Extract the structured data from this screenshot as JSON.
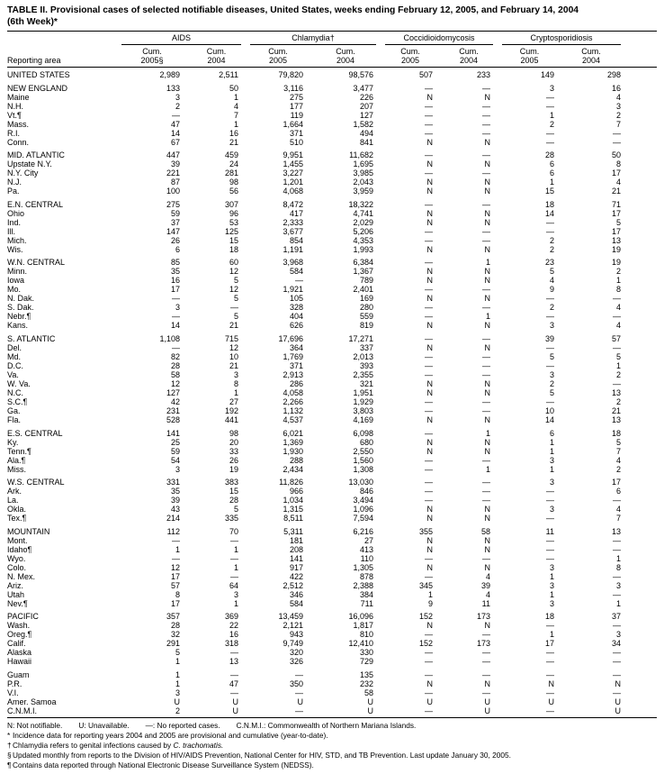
{
  "title": "TABLE II. Provisional cases of selected notifiable diseases, United States, weeks ending February 12, 2005, and February 14, 2004",
  "subtitle": "(6th Week)*",
  "header": {
    "reporting_area_label": "Reporting area",
    "groups": [
      {
        "label": "AIDS",
        "col1_line1": "Cum.",
        "col1_line2": "2005§",
        "col2_line1": "Cum.",
        "col2_line2": "2004"
      },
      {
        "label": "Chlamydia†",
        "col1_line1": "Cum.",
        "col1_line2": "2005",
        "col2_line1": "Cum.",
        "col2_line2": "2004"
      },
      {
        "label": "Coccidioidomycosis",
        "col1_line1": "Cum.",
        "col1_line2": "2005",
        "col2_line1": "Cum.",
        "col2_line2": "2004"
      },
      {
        "label": "Cryptosporidiosis",
        "col1_line1": "Cum.",
        "col1_line2": "2005",
        "col2_line1": "Cum.",
        "col2_line2": "2004"
      }
    ]
  },
  "sections": [
    {
      "rows": [
        {
          "area": "UNITED STATES",
          "values": [
            "2,989",
            "2,511",
            "79,820",
            "98,576",
            "507",
            "233",
            "149",
            "298"
          ]
        }
      ]
    },
    {
      "rows": [
        {
          "area": "NEW ENGLAND",
          "values": [
            "133",
            "50",
            "3,116",
            "3,477",
            "—",
            "—",
            "3",
            "16"
          ]
        },
        {
          "area": "Maine",
          "values": [
            "3",
            "1",
            "275",
            "226",
            "N",
            "N",
            "—",
            "4"
          ]
        },
        {
          "area": "N.H.",
          "values": [
            "2",
            "4",
            "177",
            "207",
            "—",
            "—",
            "—",
            "3"
          ]
        },
        {
          "area": "Vt.¶",
          "values": [
            "—",
            "7",
            "119",
            "127",
            "—",
            "—",
            "1",
            "2"
          ]
        },
        {
          "area": "Mass.",
          "values": [
            "47",
            "1",
            "1,664",
            "1,582",
            "—",
            "—",
            "2",
            "7"
          ]
        },
        {
          "area": "R.I.",
          "values": [
            "14",
            "16",
            "371",
            "494",
            "—",
            "—",
            "—",
            "—"
          ]
        },
        {
          "area": "Conn.",
          "values": [
            "67",
            "21",
            "510",
            "841",
            "N",
            "N",
            "—",
            "—"
          ]
        }
      ]
    },
    {
      "rows": [
        {
          "area": "MID. ATLANTIC",
          "values": [
            "447",
            "459",
            "9,951",
            "11,682",
            "—",
            "—",
            "28",
            "50"
          ]
        },
        {
          "area": "Upstate N.Y.",
          "values": [
            "39",
            "24",
            "1,455",
            "1,695",
            "N",
            "N",
            "6",
            "8"
          ]
        },
        {
          "area": "N.Y. City",
          "values": [
            "221",
            "281",
            "3,227",
            "3,985",
            "—",
            "—",
            "6",
            "17"
          ]
        },
        {
          "area": "N.J.",
          "values": [
            "87",
            "98",
            "1,201",
            "2,043",
            "N",
            "N",
            "1",
            "4"
          ]
        },
        {
          "area": "Pa.",
          "values": [
            "100",
            "56",
            "4,068",
            "3,959",
            "N",
            "N",
            "15",
            "21"
          ]
        }
      ]
    },
    {
      "rows": [
        {
          "area": "E.N. CENTRAL",
          "values": [
            "275",
            "307",
            "8,472",
            "18,322",
            "—",
            "—",
            "18",
            "71"
          ]
        },
        {
          "area": "Ohio",
          "values": [
            "59",
            "96",
            "417",
            "4,741",
            "N",
            "N",
            "14",
            "17"
          ]
        },
        {
          "area": "Ind.",
          "values": [
            "37",
            "53",
            "2,333",
            "2,029",
            "N",
            "N",
            "—",
            "5"
          ]
        },
        {
          "area": "Ill.",
          "values": [
            "147",
            "125",
            "3,677",
            "5,206",
            "—",
            "—",
            "—",
            "17"
          ]
        },
        {
          "area": "Mich.",
          "values": [
            "26",
            "15",
            "854",
            "4,353",
            "—",
            "—",
            "2",
            "13"
          ]
        },
        {
          "area": "Wis.",
          "values": [
            "6",
            "18",
            "1,191",
            "1,993",
            "N",
            "N",
            "2",
            "19"
          ]
        }
      ]
    },
    {
      "rows": [
        {
          "area": "W.N. CENTRAL",
          "values": [
            "85",
            "60",
            "3,968",
            "6,384",
            "—",
            "1",
            "23",
            "19"
          ]
        },
        {
          "area": "Minn.",
          "values": [
            "35",
            "12",
            "584",
            "1,367",
            "N",
            "N",
            "5",
            "2"
          ]
        },
        {
          "area": "Iowa",
          "values": [
            "16",
            "5",
            "—",
            "789",
            "N",
            "N",
            "4",
            "1"
          ]
        },
        {
          "area": "Mo.",
          "values": [
            "17",
            "12",
            "1,921",
            "2,401",
            "—",
            "—",
            "9",
            "8"
          ]
        },
        {
          "area": "N. Dak.",
          "values": [
            "—",
            "5",
            "105",
            "169",
            "N",
            "N",
            "—",
            "—"
          ]
        },
        {
          "area": "S. Dak.",
          "values": [
            "3",
            "—",
            "328",
            "280",
            "—",
            "—",
            "2",
            "4"
          ]
        },
        {
          "area": "Nebr.¶",
          "values": [
            "—",
            "5",
            "404",
            "559",
            "—",
            "1",
            "—",
            "—"
          ]
        },
        {
          "area": "Kans.",
          "values": [
            "14",
            "21",
            "626",
            "819",
            "N",
            "N",
            "3",
            "4"
          ]
        }
      ]
    },
    {
      "rows": [
        {
          "area": "S. ATLANTIC",
          "values": [
            "1,108",
            "715",
            "17,696",
            "17,271",
            "—",
            "—",
            "39",
            "57"
          ]
        },
        {
          "area": "Del.",
          "values": [
            "—",
            "12",
            "364",
            "337",
            "N",
            "N",
            "—",
            "—"
          ]
        },
        {
          "area": "Md.",
          "values": [
            "82",
            "10",
            "1,769",
            "2,013",
            "—",
            "—",
            "5",
            "5"
          ]
        },
        {
          "area": "D.C.",
          "values": [
            "28",
            "21",
            "371",
            "393",
            "—",
            "—",
            "—",
            "1"
          ]
        },
        {
          "area": "Va.",
          "values": [
            "58",
            "3",
            "2,913",
            "2,355",
            "—",
            "—",
            "3",
            "2"
          ]
        },
        {
          "area": "W. Va.",
          "values": [
            "12",
            "8",
            "286",
            "321",
            "N",
            "N",
            "2",
            "—"
          ]
        },
        {
          "area": "N.C.",
          "values": [
            "127",
            "1",
            "4,058",
            "1,951",
            "N",
            "N",
            "5",
            "13"
          ]
        },
        {
          "area": "S.C.¶",
          "values": [
            "42",
            "27",
            "2,266",
            "1,929",
            "—",
            "—",
            "—",
            "2"
          ]
        },
        {
          "area": "Ga.",
          "values": [
            "231",
            "192",
            "1,132",
            "3,803",
            "—",
            "—",
            "10",
            "21"
          ]
        },
        {
          "area": "Fla.",
          "values": [
            "528",
            "441",
            "4,537",
            "4,169",
            "N",
            "N",
            "14",
            "13"
          ]
        }
      ]
    },
    {
      "rows": [
        {
          "area": "E.S. CENTRAL",
          "values": [
            "141",
            "98",
            "6,021",
            "6,098",
            "—",
            "1",
            "6",
            "18"
          ]
        },
        {
          "area": "Ky.",
          "values": [
            "25",
            "20",
            "1,369",
            "680",
            "N",
            "N",
            "1",
            "5"
          ]
        },
        {
          "area": "Tenn.¶",
          "values": [
            "59",
            "33",
            "1,930",
            "2,550",
            "N",
            "N",
            "1",
            "7"
          ]
        },
        {
          "area": "Ala.¶",
          "values": [
            "54",
            "26",
            "288",
            "1,560",
            "—",
            "—",
            "3",
            "4"
          ]
        },
        {
          "area": "Miss.",
          "values": [
            "3",
            "19",
            "2,434",
            "1,308",
            "—",
            "1",
            "1",
            "2"
          ]
        }
      ]
    },
    {
      "rows": [
        {
          "area": "W.S. CENTRAL",
          "values": [
            "331",
            "383",
            "11,826",
            "13,030",
            "—",
            "—",
            "3",
            "17"
          ]
        },
        {
          "area": "Ark.",
          "values": [
            "35",
            "15",
            "966",
            "846",
            "—",
            "—",
            "—",
            "6"
          ]
        },
        {
          "area": "La.",
          "values": [
            "39",
            "28",
            "1,034",
            "3,494",
            "—",
            "—",
            "—",
            "—"
          ]
        },
        {
          "area": "Okla.",
          "values": [
            "43",
            "5",
            "1,315",
            "1,096",
            "N",
            "N",
            "3",
            "4"
          ]
        },
        {
          "area": "Tex.¶",
          "values": [
            "214",
            "335",
            "8,511",
            "7,594",
            "N",
            "N",
            "—",
            "7"
          ]
        }
      ]
    },
    {
      "rows": [
        {
          "area": "MOUNTAIN",
          "values": [
            "112",
            "70",
            "5,311",
            "6,216",
            "355",
            "58",
            "11",
            "13"
          ]
        },
        {
          "area": "Mont.",
          "values": [
            "—",
            "—",
            "181",
            "27",
            "N",
            "N",
            "—",
            "—"
          ]
        },
        {
          "area": "Idaho¶",
          "values": [
            "1",
            "1",
            "208",
            "413",
            "N",
            "N",
            "—",
            "—"
          ]
        },
        {
          "area": "Wyo.",
          "values": [
            "—",
            "—",
            "141",
            "110",
            "—",
            "—",
            "—",
            "1"
          ]
        },
        {
          "area": "Colo.",
          "values": [
            "12",
            "1",
            "917",
            "1,305",
            "N",
            "N",
            "3",
            "8"
          ]
        },
        {
          "area": "N. Mex.",
          "values": [
            "17",
            "—",
            "422",
            "878",
            "—",
            "4",
            "1",
            "—"
          ]
        },
        {
          "area": "Ariz.",
          "values": [
            "57",
            "64",
            "2,512",
            "2,388",
            "345",
            "39",
            "3",
            "3"
          ]
        },
        {
          "area": "Utah",
          "values": [
            "8",
            "3",
            "346",
            "384",
            "1",
            "4",
            "1",
            "—"
          ]
        },
        {
          "area": "Nev.¶",
          "values": [
            "17",
            "1",
            "584",
            "711",
            "9",
            "11",
            "3",
            "1"
          ]
        }
      ]
    },
    {
      "rows": [
        {
          "area": "PACIFIC",
          "values": [
            "357",
            "369",
            "13,459",
            "16,096",
            "152",
            "173",
            "18",
            "37"
          ]
        },
        {
          "area": "Wash.",
          "values": [
            "28",
            "22",
            "2,121",
            "1,817",
            "N",
            "N",
            "—",
            "—"
          ]
        },
        {
          "area": "Oreg.¶",
          "values": [
            "32",
            "16",
            "943",
            "810",
            "—",
            "—",
            "1",
            "3"
          ]
        },
        {
          "area": "Calif.",
          "values": [
            "291",
            "318",
            "9,749",
            "12,410",
            "152",
            "173",
            "17",
            "34"
          ]
        },
        {
          "area": "Alaska",
          "values": [
            "5",
            "—",
            "320",
            "330",
            "—",
            "—",
            "—",
            "—"
          ]
        },
        {
          "area": "Hawaii",
          "values": [
            "1",
            "13",
            "326",
            "729",
            "—",
            "—",
            "—",
            "—"
          ]
        }
      ]
    },
    {
      "rows": [
        {
          "area": "Guam",
          "values": [
            "1",
            "—",
            "—",
            "135",
            "—",
            "—",
            "—",
            "—"
          ]
        },
        {
          "area": "P.R.",
          "values": [
            "1",
            "47",
            "350",
            "232",
            "N",
            "N",
            "N",
            "N"
          ]
        },
        {
          "area": "V.I.",
          "values": [
            "3",
            "—",
            "—",
            "58",
            "—",
            "—",
            "—",
            "—"
          ]
        },
        {
          "area": "Amer. Samoa",
          "values": [
            "U",
            "U",
            "U",
            "U",
            "U",
            "U",
            "U",
            "U"
          ]
        },
        {
          "area": "C.N.M.I.",
          "values": [
            "2",
            "U",
            "—",
            "U",
            "—",
            "U",
            "—",
            "U"
          ]
        }
      ]
    }
  ],
  "footnotes": {
    "legend": [
      "N: Not notifiable.",
      "U: Unavailable.",
      "—: No reported cases.",
      "C.N.M.I.: Commonwealth of Northern Mariana Islands."
    ],
    "notes": [
      {
        "marker": "*",
        "text": "Incidence data for reporting years 2004 and 2005 are provisional and cumulative (year-to-date)."
      },
      {
        "marker": "†",
        "text": "Chlamydia refers to genital infections caused by ",
        "italic": "C. trachomatis."
      },
      {
        "marker": "§",
        "text": "Updated monthly from reports to the Division of HIV/AIDS Prevention, National Center for HIV, STD, and TB Prevention. Last update January 30, 2005."
      },
      {
        "marker": "¶",
        "text": "Contains data reported through National Electronic Disease Surveillance System (NEDSS)."
      }
    ]
  }
}
